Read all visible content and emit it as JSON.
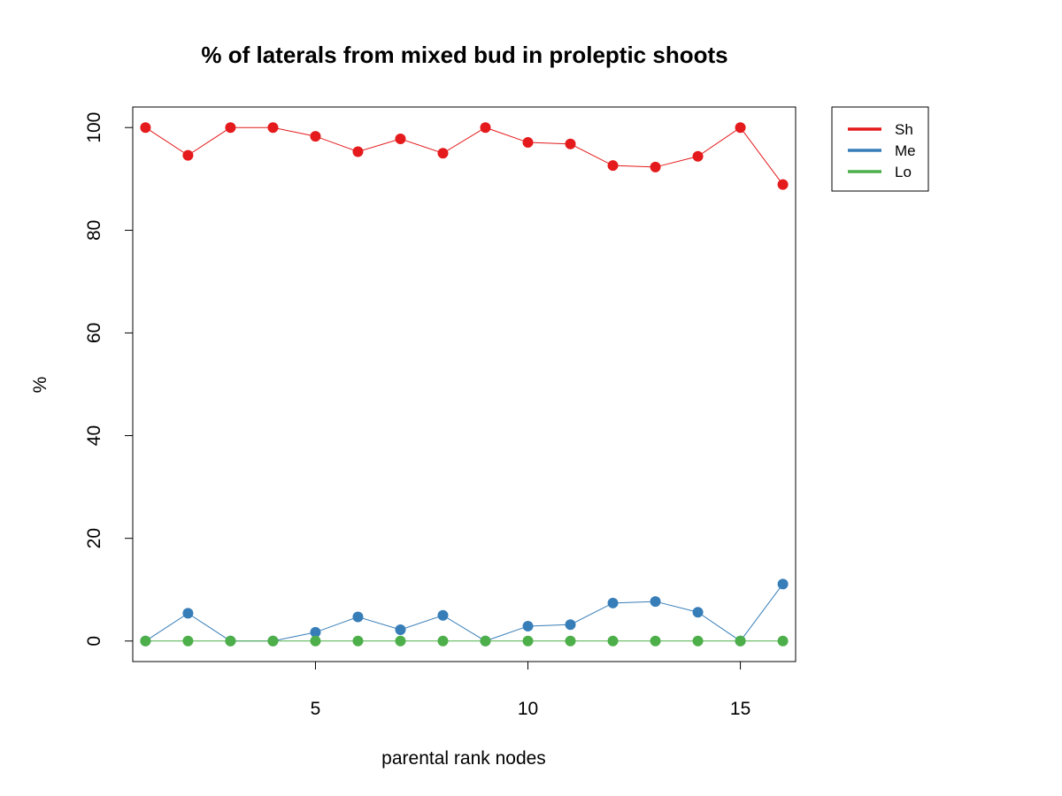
{
  "chart_data": {
    "type": "line",
    "title": "% of laterals from mixed bud in proleptic shoots",
    "xlabel": "parental rank nodes",
    "ylabel": "%",
    "xlim": [
      0.7,
      16.3
    ],
    "ylim": [
      -4,
      104
    ],
    "x_ticks": [
      5,
      10,
      15
    ],
    "y_ticks": [
      0,
      20,
      40,
      60,
      80,
      100
    ],
    "grid": false,
    "legend_position": "top-right, outside plot",
    "x": [
      1,
      2,
      3,
      4,
      5,
      6,
      7,
      8,
      9,
      10,
      11,
      12,
      13,
      14,
      15,
      16
    ],
    "series": [
      {
        "name": "Sh",
        "color": "#e41a1c",
        "values": [
          100,
          94.6,
          100,
          100,
          98.3,
          95.3,
          97.8,
          95,
          100,
          97.1,
          96.8,
          92.6,
          92.3,
          94.4,
          100,
          88.9
        ]
      },
      {
        "name": "Me",
        "color": "#377eb8",
        "values": [
          0,
          5.4,
          0,
          0,
          1.7,
          4.7,
          2.2,
          5,
          0,
          2.9,
          3.2,
          7.4,
          7.7,
          5.6,
          0,
          11.1
        ]
      },
      {
        "name": "Lo",
        "color": "#4daf4a",
        "values": [
          0,
          0,
          0,
          0,
          0,
          0,
          0,
          0,
          0,
          0,
          0,
          0,
          0,
          0,
          0,
          0
        ]
      }
    ]
  }
}
